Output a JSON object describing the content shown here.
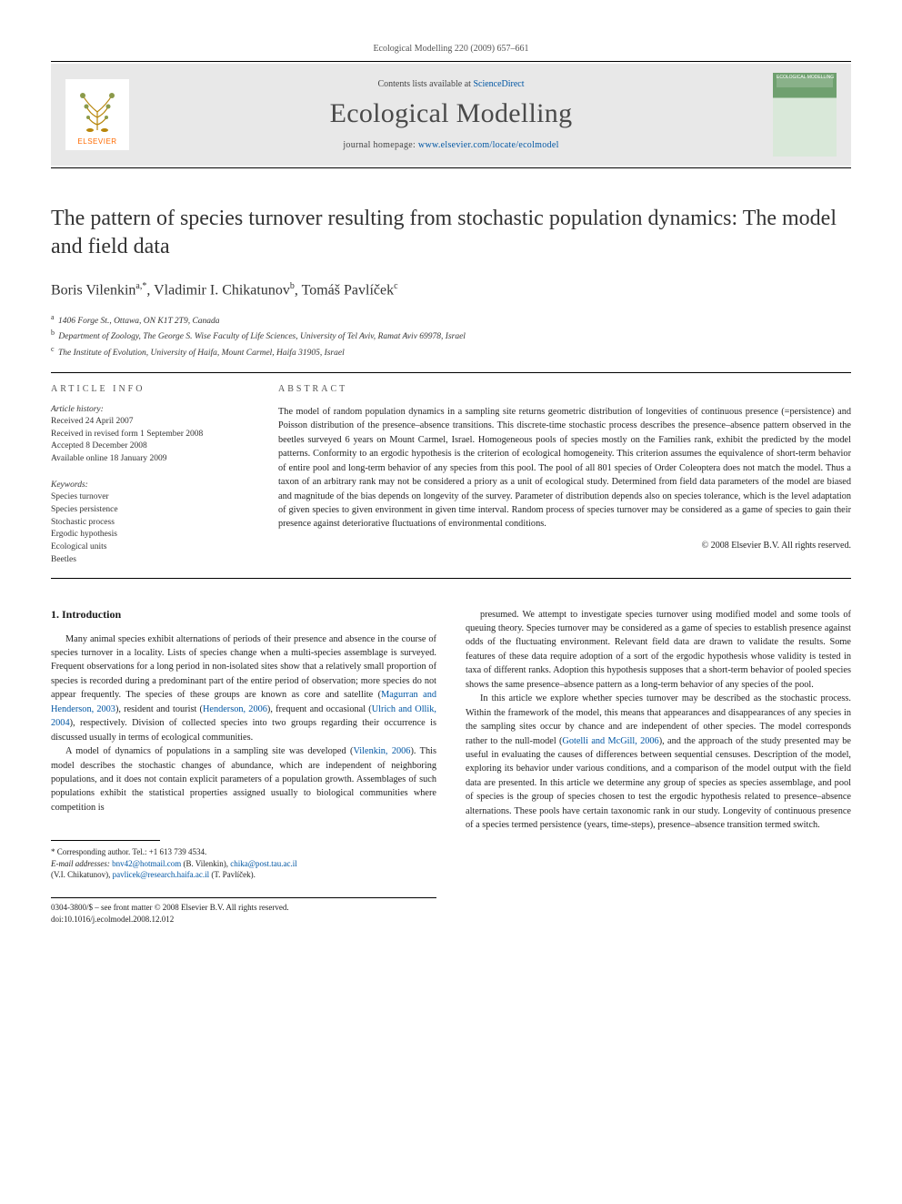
{
  "citation": "Ecological Modelling 220 (2009) 657–661",
  "band": {
    "contents_prefix": "Contents lists available at ",
    "contents_link": "ScienceDirect",
    "journal_title": "Ecological Modelling",
    "homepage_prefix": "journal homepage: ",
    "homepage_url": "www.elsevier.com/locate/ecolmodel",
    "elsevier_word": "ELSEVIER",
    "cover_label": "ECOLOGICAL MODELLING"
  },
  "title": "The pattern of species turnover resulting from stochastic population dynamics: The model and field data",
  "authors_html": "Boris Vilenkin",
  "authors": [
    {
      "name": "Boris Vilenkin",
      "sup": "a,*"
    },
    {
      "name": "Vladimir I. Chikatunov",
      "sup": "b"
    },
    {
      "name": "Tomáš Pavlíček",
      "sup": "c"
    }
  ],
  "affiliations": [
    {
      "sup": "a",
      "text": "1406 Forge St., Ottawa, ON K1T 2T9, Canada"
    },
    {
      "sup": "b",
      "text": "Department of Zoology, The George S. Wise Faculty of Life Sciences, University of Tel Aviv, Ramat Aviv 69978, Israel"
    },
    {
      "sup": "c",
      "text": "The Institute of Evolution, University of Haifa, Mount Carmel, Haifa 31905, Israel"
    }
  ],
  "info_heads": {
    "left": "article info",
    "right": "abstract"
  },
  "history": {
    "head": "Article history:",
    "items": [
      "Received 24 April 2007",
      "Received in revised form 1 September 2008",
      "Accepted 8 December 2008",
      "Available online 18 January 2009"
    ]
  },
  "keywords": {
    "head": "Keywords:",
    "items": [
      "Species turnover",
      "Species persistence",
      "Stochastic process",
      "Ergodic hypothesis",
      "Ecological units",
      "Beetles"
    ]
  },
  "abstract": "The model of random population dynamics in a sampling site returns geometric distribution of longevities of continuous presence (=persistence) and Poisson distribution of the presence–absence transitions. This discrete-time stochastic process describes the presence–absence pattern observed in the beetles surveyed 6 years on Mount Carmel, Israel. Homogeneous pools of species mostly on the Families rank, exhibit the predicted by the model patterns. Conformity to an ergodic hypothesis is the criterion of ecological homogeneity. This criterion assumes the equivalence of short-term behavior of entire pool and long-term behavior of any species from this pool. The pool of all 801 species of Order Coleoptera does not match the model. Thus a taxon of an arbitrary rank may not be considered a priory as a unit of ecological study. Determined from field data parameters of the model are biased and magnitude of the bias depends on longevity of the survey. Parameter of distribution depends also on species tolerance, which is the level adaptation of given species to given environment in given time interval. Random process of species turnover may be considered as a game of species to gain their presence against deteriorative fluctuations of environmental conditions.",
  "copyright": "© 2008 Elsevier B.V. All rights reserved.",
  "section1": {
    "num": "1.",
    "title": "Introduction"
  },
  "paras_left": [
    "Many animal species exhibit alternations of periods of their presence and absence in the course of species turnover in a locality. Lists of species change when a multi-species assemblage is surveyed. Frequent observations for a long period in non-isolated sites show that a relatively small proportion of species is recorded during a predominant part of the entire period of observation; more species do not appear frequently. The species of these groups are known as core and satellite (Magurran and Henderson, 2003), resident and tourist (Henderson, 2006), frequent and occasional (Ulrich and Ollik, 2004), respectively. Division of collected species into two groups regarding their occurrence is discussed usually in terms of ecological communities.",
    "A model of dynamics of populations in a sampling site was developed (Vilenkin, 2006). This model describes the stochastic changes of abundance, which are independent of neighboring populations, and it does not contain explicit parameters of a population growth. Assemblages of such populations exhibit the statistical properties assigned usually to biological communities where competition is"
  ],
  "paras_right": [
    "presumed. We attempt to investigate species turnover using modified model and some tools of queuing theory. Species turnover may be considered as a game of species to establish presence against odds of the fluctuating environment. Relevant field data are drawn to validate the results. Some features of these data require adoption of a sort of the ergodic hypothesis whose validity is tested in taxa of different ranks. Adoption this hypothesis supposes that a short-term behavior of pooled species shows the same presence–absence pattern as a long-term behavior of any species of the pool.",
    "In this article we explore whether species turnover may be described as the stochastic process. Within the framework of the model, this means that appearances and disappearances of any species in the sampling sites occur by chance and are independent of other species. The model corresponds rather to the null-model (Gotelli and McGill, 2006), and the approach of the study presented may be useful in evaluating the causes of differences between sequential censuses. Description of the model, exploring its behavior under various conditions, and a comparison of the model output with the field data are presented. In this article we determine any group of species as species assemblage, and pool of species is the group of species chosen to test the ergodic hypothesis related to presence–absence alternations. These pools have certain taxonomic rank in our study. Longevity of continuous presence of a species termed persistence (years, time-steps), presence–absence transition termed switch."
  ],
  "refs_left": {
    "0": [
      "Magurran and Henderson, 2003",
      "Henderson, 2006",
      "Ulrich and Ollik, 2004"
    ],
    "1": [
      "Vilenkin, 2006"
    ]
  },
  "refs_right": {
    "1": [
      "Gotelli and McGill, 2006"
    ]
  },
  "footnote": {
    "corr": "* Corresponding author. Tel.: +1 613 739 4534.",
    "email_label": "E-mail addresses:",
    "emails": [
      {
        "addr": "bnv42@hotmail.com",
        "who": "(B. Vilenkin),"
      },
      {
        "addr": "chika@post.tau.ac.il",
        "who": ""
      },
      {
        "addr_who_line2": "(V.I. Chikatunov),"
      },
      {
        "addr": "pavlicek@research.haifa.ac.il",
        "who": "(T. Pavlíček)."
      }
    ]
  },
  "footer": {
    "line1": "0304-3800/$ – see front matter © 2008 Elsevier B.V. All rights reserved.",
    "line2": "doi:10.1016/j.ecolmodel.2008.12.012"
  }
}
